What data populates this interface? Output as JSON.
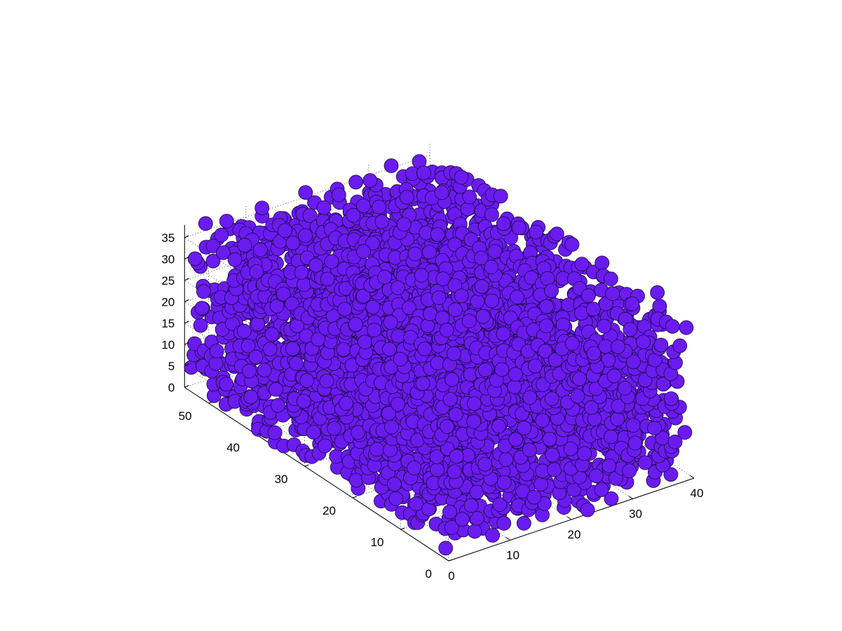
{
  "chart_data": {
    "type": "scatter",
    "projection": "3d",
    "title": "",
    "xlabel": "",
    "ylabel": "",
    "zlabel": "",
    "grid": true,
    "marker_color": "#6a1bf0",
    "marker_edge_color": "#1a0a3a",
    "marker": "filled-sphere",
    "xlim": [
      0,
      40
    ],
    "ylim": [
      0,
      55
    ],
    "zlim": [
      0,
      38
    ],
    "xticks": [
      "0",
      "10",
      "20",
      "30",
      "40"
    ],
    "yticks": [
      "0",
      "10",
      "20",
      "30",
      "40",
      "50"
    ],
    "zticks": [
      "0",
      "5",
      "10",
      "15",
      "20",
      "25",
      "30",
      "35"
    ],
    "series": [
      {
        "description_of_distribution": "uniform random packing of spheres filling the box",
        "approx_point_count": 4000
      }
    ]
  }
}
